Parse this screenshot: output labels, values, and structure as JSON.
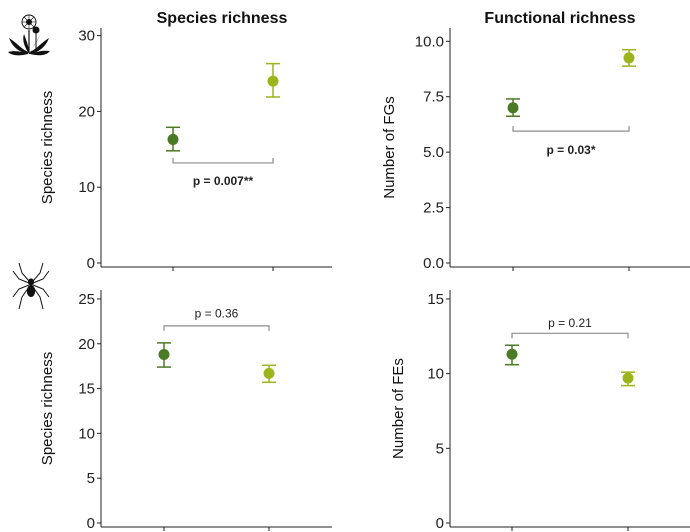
{
  "columns": [
    {
      "title": "Species richness"
    },
    {
      "title": "Functional richness"
    }
  ],
  "rows": [
    {
      "icon": "dandelion-plant-icon"
    },
    {
      "icon": "spider-icon"
    }
  ],
  "colors": {
    "group_a": "#4a7a23",
    "group_b": "#9bb51b",
    "bracket": "#8c8c8c",
    "axis": "#222222"
  },
  "chart_data": [
    {
      "type": "scatter",
      "panel": "top-left",
      "ylabel": "Species richness",
      "ylim": [
        0,
        31
      ],
      "yticks": [
        0,
        10,
        20,
        30
      ],
      "ytick_labels": [
        "0",
        "10",
        "20",
        "30"
      ],
      "series": [
        {
          "x": 1,
          "y": 16.3,
          "ymin": 14.8,
          "ymax": 17.9
        },
        {
          "x": 2,
          "y": 24.0,
          "ymin": 21.9,
          "ymax": 26.3
        }
      ],
      "annotation": {
        "text": "p = 0.007**",
        "bold": true,
        "bracket_y": 13.2,
        "label_y": 10.8
      }
    },
    {
      "type": "scatter",
      "panel": "top-right",
      "ylabel": "Number of FGs",
      "ylim": [
        0,
        10.6
      ],
      "yticks": [
        0,
        2.5,
        5,
        7.5,
        10
      ],
      "ytick_labels": [
        "0.0",
        "2.5",
        "5.0",
        "7.5",
        "10.0"
      ],
      "series": [
        {
          "x": 1,
          "y": 7.0,
          "ymin": 6.62,
          "ymax": 7.4
        },
        {
          "x": 2,
          "y": 9.25,
          "ymin": 8.88,
          "ymax": 9.62
        }
      ],
      "annotation": {
        "text": "p = 0.03*",
        "bold": true,
        "bracket_y": 5.95,
        "label_y": 5.1
      }
    },
    {
      "type": "scatter",
      "panel": "bottom-left",
      "ylabel": "Species richness",
      "ylim": [
        0,
        26
      ],
      "yticks": [
        0,
        5,
        10,
        15,
        20,
        25
      ],
      "ytick_labels": [
        "0",
        "5",
        "10",
        "15",
        "20",
        "25"
      ],
      "series": [
        {
          "x": 1,
          "y": 18.8,
          "ymin": 17.4,
          "ymax": 20.1
        },
        {
          "x": 2,
          "y": 16.7,
          "ymin": 15.7,
          "ymax": 17.6
        }
      ],
      "annotation": {
        "text": "p = 0.36",
        "bold": false,
        "bracket_y": 22.0,
        "label_y": 23.4
      }
    },
    {
      "type": "scatter",
      "panel": "bottom-right",
      "ylabel": "Number of FEs",
      "ylim": [
        0,
        15.6
      ],
      "yticks": [
        0,
        5,
        10,
        15
      ],
      "ytick_labels": [
        "0",
        "5",
        "10",
        "15"
      ],
      "series": [
        {
          "x": 1,
          "y": 11.3,
          "ymin": 10.6,
          "ymax": 11.9
        },
        {
          "x": 2,
          "y": 9.7,
          "ymin": 9.2,
          "ymax": 10.1
        }
      ],
      "annotation": {
        "text": "p = 0.21",
        "bold": false,
        "bracket_y": 12.7,
        "label_y": 13.4
      }
    }
  ]
}
